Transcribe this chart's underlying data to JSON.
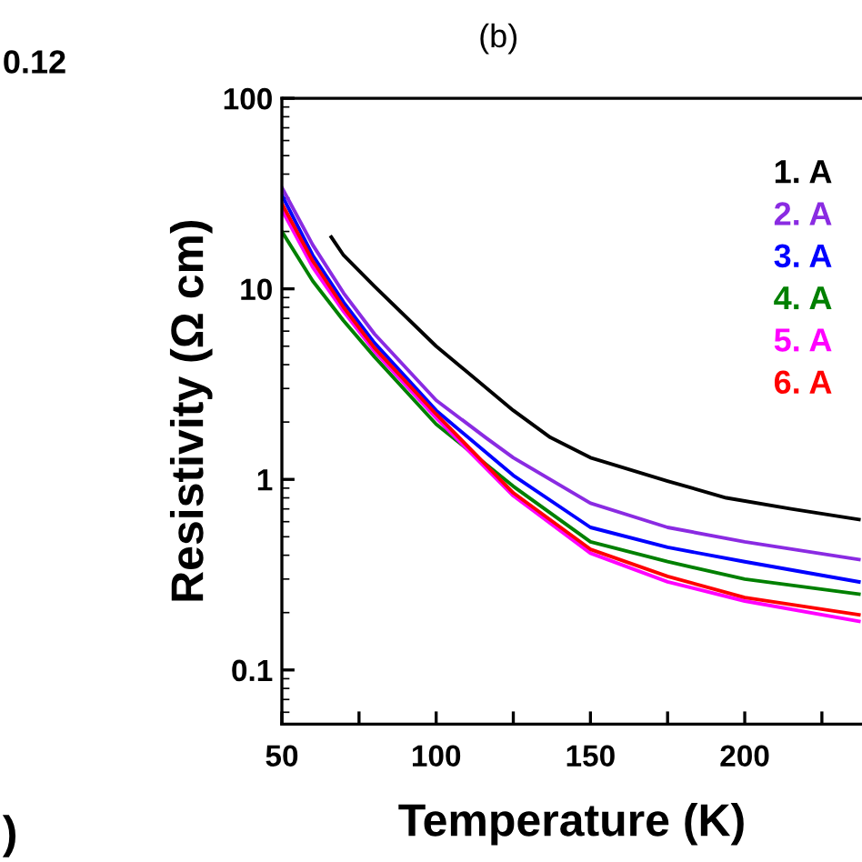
{
  "chart_data": {
    "type": "line",
    "title": "(b)",
    "xlabel": "Temperature (K)",
    "ylabel": "Resistivity (Ω cm)",
    "log": "y",
    "xlim": [
      50,
      238
    ],
    "ylim": [
      0.052,
      100
    ],
    "xticks": [
      50,
      {
        "value": 75,
        "label": null
      },
      100,
      {
        "value": 125,
        "label": null
      },
      150,
      {
        "value": 175,
        "label": null
      },
      200,
      {
        "value": 225,
        "label": null
      }
    ],
    "yticks": [
      0.1,
      1,
      10,
      100
    ],
    "grid": false,
    "legend": "top right",
    "marker": "none",
    "line_style": "solid",
    "annotations": [
      "0.12",
      ")"
    ],
    "series": [
      {
        "name": "1. A",
        "color": "#000000",
        "x": [
          66,
          70,
          80,
          100,
          125,
          137,
          150,
          175,
          194,
          215,
          237
        ],
        "values": [
          18.7,
          15,
          10.3,
          5.0,
          2.3,
          1.66,
          1.3,
          0.98,
          0.8,
          0.7,
          0.616
        ]
      },
      {
        "name": "2. A",
        "color": "#8a2be2",
        "x": [
          50,
          60,
          70,
          80,
          100,
          116,
          125,
          150,
          175,
          200,
          237
        ],
        "values": [
          34,
          17,
          9.5,
          5.8,
          2.6,
          1.66,
          1.3,
          0.75,
          0.56,
          0.47,
          0.38
        ]
      },
      {
        "name": "3. A",
        "color": "#0000ff",
        "x": [
          50,
          60,
          70,
          80,
          100,
          125,
          150,
          175,
          200,
          237
        ],
        "values": [
          31,
          15,
          8.5,
          5.2,
          2.3,
          1.05,
          0.56,
          0.44,
          0.37,
          0.29
        ]
      },
      {
        "name": "4. A",
        "color": "#008000",
        "x": [
          50,
          60,
          70,
          80,
          100,
          125,
          150,
          175,
          200,
          237
        ],
        "values": [
          20,
          11,
          6.8,
          4.4,
          1.95,
          0.92,
          0.47,
          0.37,
          0.3,
          0.25
        ]
      },
      {
        "name": "5. A",
        "color": "#ff00ff",
        "x": [
          50,
          60,
          70,
          80,
          100,
          125,
          150,
          175,
          200,
          237
        ],
        "values": [
          26,
          13,
          7.6,
          4.7,
          2.1,
          0.82,
          0.41,
          0.29,
          0.23,
          0.18
        ]
      },
      {
        "name": "6. A",
        "color": "#ff0000",
        "x": [
          50,
          60,
          70,
          80,
          100,
          125,
          150,
          175,
          200,
          237
        ],
        "values": [
          28,
          14,
          8,
          4.9,
          2.2,
          0.85,
          0.43,
          0.31,
          0.24,
          0.195
        ]
      }
    ]
  }
}
